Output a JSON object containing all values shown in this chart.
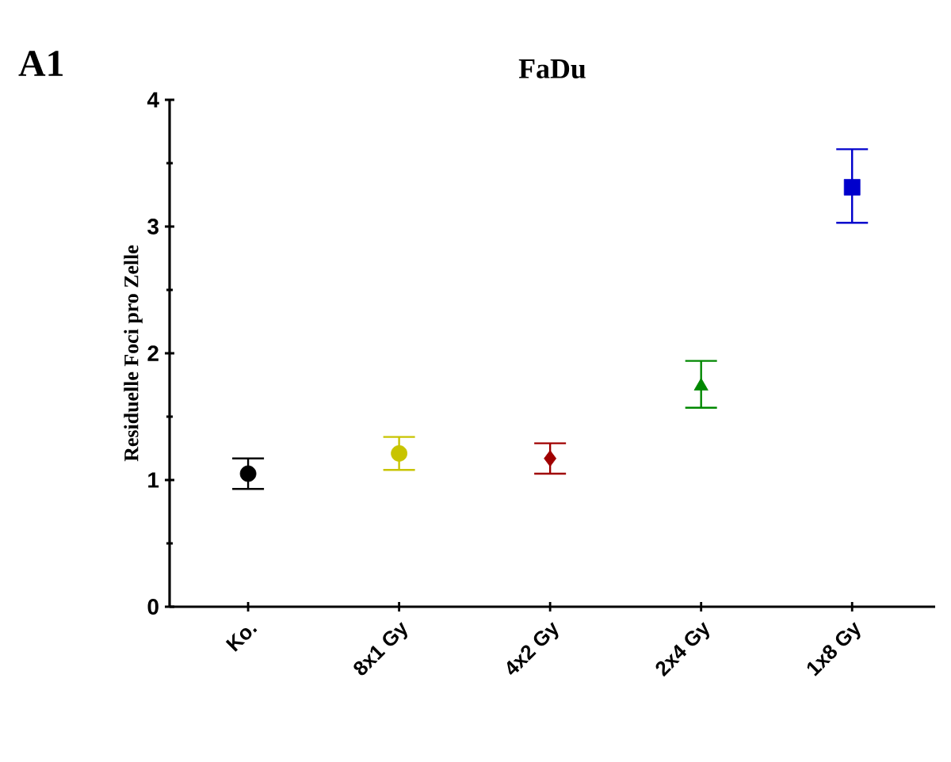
{
  "chart_data": {
    "type": "scatter",
    "title": "FaDu",
    "ylabel": "Residuelle Foci pro Zelle",
    "annotations": [
      "A1"
    ],
    "categories": [
      "Ko.",
      "8x1 Gy",
      "4x2 Gy",
      "2x4 Gy",
      "1x8 Gy"
    ],
    "series": [
      {
        "color": "#000000",
        "marker": "circle",
        "values": [
          1.05,
          null,
          null,
          null,
          null
        ],
        "errors": [
          0.12,
          null,
          null,
          null,
          null
        ]
      },
      {
        "color": "#c8c400",
        "marker": "circle",
        "values": [
          null,
          1.21,
          null,
          null,
          null
        ],
        "errors": [
          null,
          0.13,
          null,
          null,
          null
        ]
      },
      {
        "color": "#a00000",
        "marker": "diamond",
        "values": [
          null,
          null,
          1.17,
          null,
          null
        ],
        "errors": [
          null,
          null,
          0.12,
          null,
          null
        ]
      },
      {
        "color": "#008800",
        "marker": "triangle",
        "values": [
          null,
          null,
          null,
          1.74,
          null
        ],
        "errors": [
          null,
          null,
          null,
          [
            1.57,
            1.94
          ],
          null
        ]
      },
      {
        "color": "#0000cc",
        "marker": "square",
        "values": [
          null,
          null,
          null,
          null,
          3.31
        ],
        "errors": [
          null,
          null,
          null,
          null,
          [
            3.03,
            3.61
          ]
        ]
      }
    ],
    "ylim": [
      0,
      4
    ],
    "yticks": [
      0,
      1,
      2,
      3,
      4
    ]
  }
}
